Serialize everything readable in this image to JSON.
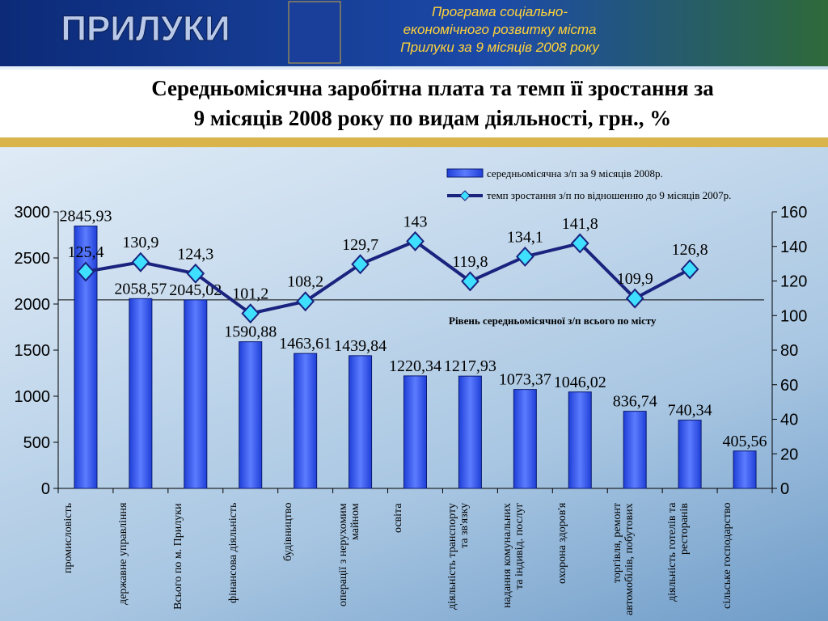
{
  "header": {
    "logo": "ПРИЛУКИ",
    "program": [
      "Програма соціально-",
      "економічного розвитку міста",
      "Прилуки за 9 місяців 2008 року"
    ]
  },
  "chart_data": {
    "type": "bar-line",
    "title": [
      "Середньомісячна заробітна плата та темп її зростання за",
      "9 місяців 2008 року по видам діяльності, грн., %"
    ],
    "categories": [
      "промисловість",
      "державне управління",
      "Всього по м. Прилуки",
      "фінансова діяльність",
      "будівництво",
      "операції з нерухомим майном",
      "освіта",
      "діяльність транспорту та зв'язку",
      "надання комунальних та індивід. послуг",
      "охорона здоров'я",
      "торгівля, ремонт автомобілів, побутових",
      "діяльність готелів та ресторанів",
      "сільське господарство"
    ],
    "series": [
      {
        "name": "середньомісячна з/п за 9 місяців 2008р.",
        "color": "#3355ee",
        "values": [
          2845.93,
          2058.57,
          2045.02,
          1590.88,
          1463.61,
          1439.84,
          1220.34,
          1217.93,
          1073.37,
          1046.02,
          836.74,
          740.34,
          405.56
        ],
        "value_labels": [
          "2845,93",
          "2058,57",
          "2045,02",
          "1590,88",
          "1463,61",
          "1439,84",
          "1220,34",
          "1217,93",
          "1073,37",
          "1046,02",
          "836,74",
          "740,34",
          "405,56"
        ]
      },
      {
        "name": "темп зростання з/п по відношенню до 9 місяців 2007р.",
        "color": "#1a237e",
        "marker_color": "#3fe0ff",
        "axis": "y2",
        "values": [
          125.4,
          130.9,
          124.3,
          101.2,
          108.2,
          129.7,
          143,
          119.8,
          134.1,
          141.8,
          109.9,
          126.8,
          null
        ],
        "value_labels": [
          "125,4",
          "130,9",
          "124,3",
          "101,2",
          "108,2",
          "129,7",
          "143",
          "119,8",
          "134,1",
          "141,8",
          "109,9",
          "126,8",
          null
        ]
      }
    ],
    "annotation": "Рівень середньомісячної з/п всього по місту",
    "ylim": [
      0,
      3000
    ],
    "yticks": [
      0,
      500,
      1000,
      1500,
      2000,
      2500,
      3000
    ],
    "y2lim": [
      0,
      160
    ],
    "y2ticks": [
      0,
      20,
      40,
      60,
      80,
      100,
      120,
      140,
      160
    ]
  }
}
